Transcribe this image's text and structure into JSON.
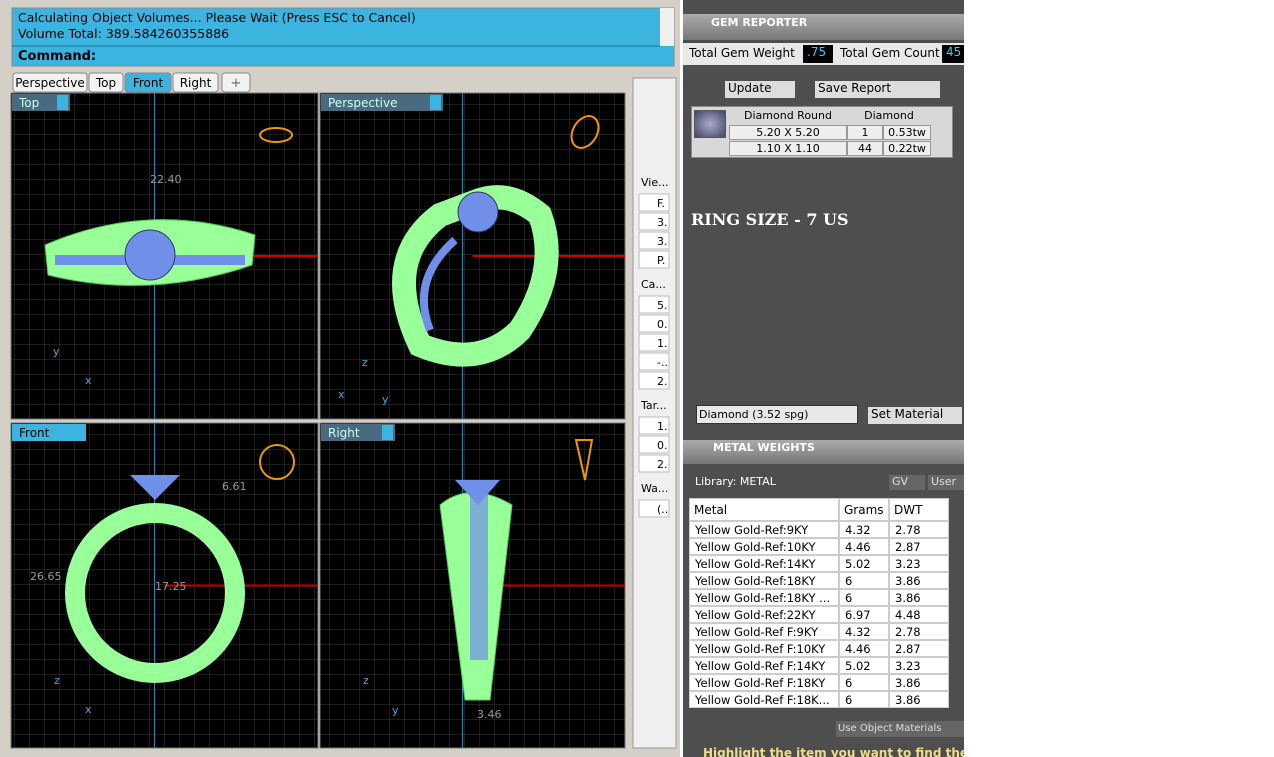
{
  "command": {
    "lines": [
      "Calculating Object Volumes... Please Wait (Press ESC to Cancel)",
      "Volume Total: 389.584260355886"
    ],
    "prompt": "Command:"
  },
  "tabs": [
    "Perspective",
    "Top",
    "Front",
    "Right"
  ],
  "viewports": [
    {
      "label": "Top",
      "annotations": [
        "22.40",
        "y",
        "x"
      ]
    },
    {
      "label": "Perspective",
      "annotations": [
        "z",
        "x",
        "y"
      ]
    },
    {
      "label": "Front",
      "annotations": [
        "26.65",
        "17.25",
        "6.61",
        "z",
        "x"
      ]
    },
    {
      "label": "Right",
      "annotations": [
        "3.46",
        "z",
        "y"
      ]
    }
  ],
  "side_panel": [
    {
      "title": "Vie...",
      "items": [
        "F.",
        "3.",
        "3.",
        "P."
      ]
    },
    {
      "title": "Ca...",
      "items": [
        "5.",
        "0.",
        "1.",
        "-..",
        "2."
      ]
    },
    {
      "title": "Tar...",
      "items": [
        "1.",
        "0.",
        "2."
      ]
    },
    {
      "title": "Wa...",
      "items": [
        "(.."
      ]
    }
  ],
  "gem_reporter": {
    "title": "GEM REPORTER",
    "total_weight_label": "Total Gem Weight",
    "total_weight": ".75",
    "total_count_label": "Total Gem Count",
    "total_count": "45",
    "update": "Update",
    "save_report": "Save Report",
    "gem_table": {
      "header": [
        "Diamond Round",
        "Diamond"
      ],
      "rows": [
        [
          "5.20 X 5.20",
          "1",
          "0.53tw"
        ],
        [
          "1.10 X 1.10",
          "44",
          "0.22tw"
        ]
      ]
    },
    "note": "RING SIZE - 7 US",
    "material": "Diamond    (3.52 spg)",
    "set_material": "Set Material"
  },
  "metal_weights": {
    "title": "METAL WEIGHTS",
    "library": "Library: METAL",
    "gv": "GV",
    "user": "User",
    "header": [
      "Metal",
      "Grams",
      "DWT"
    ],
    "rows": [
      [
        "Yellow Gold-Ref:9KY",
        "4.32",
        "2.78"
      ],
      [
        "Yellow Gold-Ref:10KY",
        "4.46",
        "2.87"
      ],
      [
        "Yellow Gold-Ref:14KY",
        "5.02",
        "3.23"
      ],
      [
        "Yellow Gold-Ref:18KY",
        "6",
        "3.86"
      ],
      [
        "Yellow Gold-Ref:18KY ...",
        "6",
        "3.86"
      ],
      [
        "Yellow Gold-Ref:22KY",
        "6.97",
        "4.48"
      ],
      [
        "Yellow Gold-Ref F:9KY",
        "4.32",
        "2.78"
      ],
      [
        "Yellow Gold-Ref F:10KY",
        "4.46",
        "2.87"
      ],
      [
        "Yellow Gold-Ref F:14KY",
        "5.02",
        "3.23"
      ],
      [
        "Yellow Gold-Ref F:18KY",
        "6",
        "3.86"
      ],
      [
        "Yellow Gold-Ref F:18K...",
        "6",
        "3.86"
      ]
    ],
    "use_object_materials": "Use Object Materials",
    "hint": "Highlight the item you want to find the weight"
  }
}
